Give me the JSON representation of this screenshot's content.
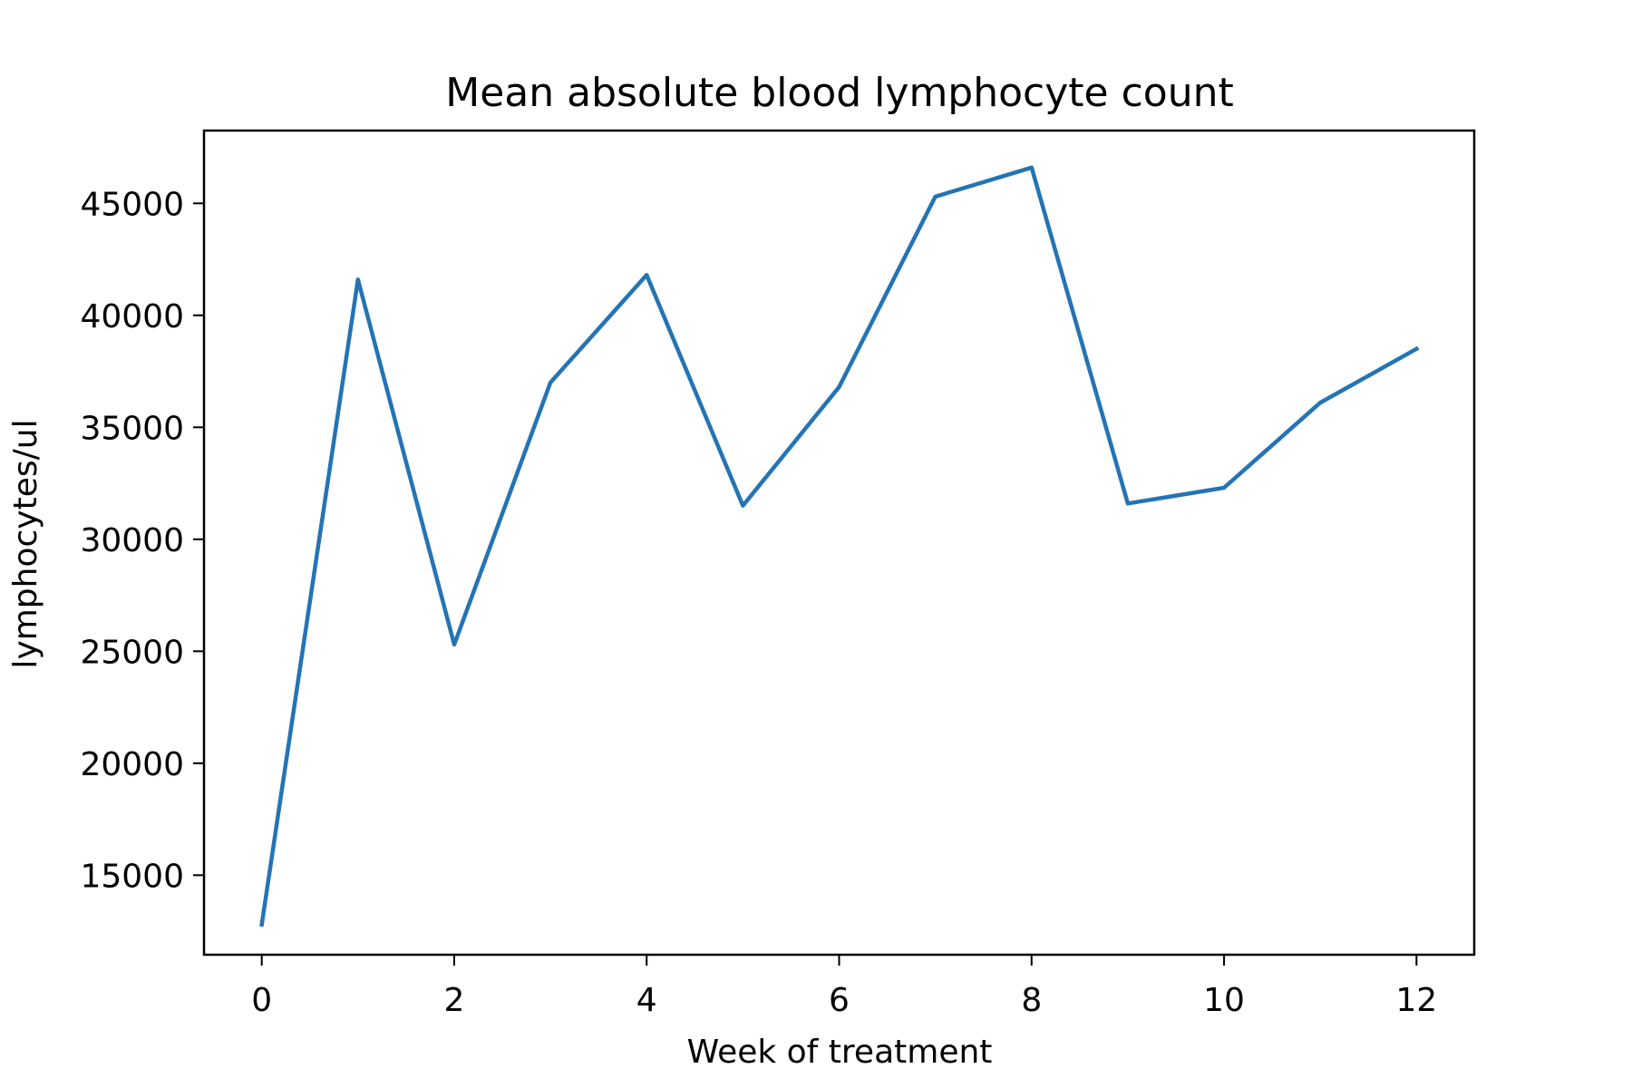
{
  "chart_data": {
    "type": "line",
    "title": "Mean absolute blood lymphocyte count",
    "xlabel": "Week of treatment",
    "ylabel": "lymphocytes/ul",
    "x": [
      0,
      1,
      2,
      3,
      4,
      5,
      6,
      7,
      8,
      9,
      10,
      11,
      12
    ],
    "series": [
      {
        "values": [
          12800,
          41600,
          25300,
          37000,
          41800,
          31500,
          36800,
          45300,
          46600,
          31600,
          32300,
          36100,
          38500
        ]
      }
    ],
    "xlim": [
      -0.6,
      12.6
    ],
    "ylim": [
      11450,
      48250
    ],
    "xticks": [
      0,
      2,
      4,
      6,
      8,
      10,
      12
    ],
    "xtick_labels": [
      "0",
      "2",
      "4",
      "6",
      "8",
      "10",
      "12"
    ],
    "yticks": [
      15000,
      20000,
      25000,
      30000,
      35000,
      40000,
      45000
    ],
    "ytick_labels": [
      "15000",
      "20000",
      "25000",
      "30000",
      "35000",
      "40000",
      "45000"
    ],
    "grid": false,
    "legend": "none",
    "colors": {
      "line": "#2474b4",
      "axes": "#000000",
      "background": "#ffffff"
    }
  }
}
